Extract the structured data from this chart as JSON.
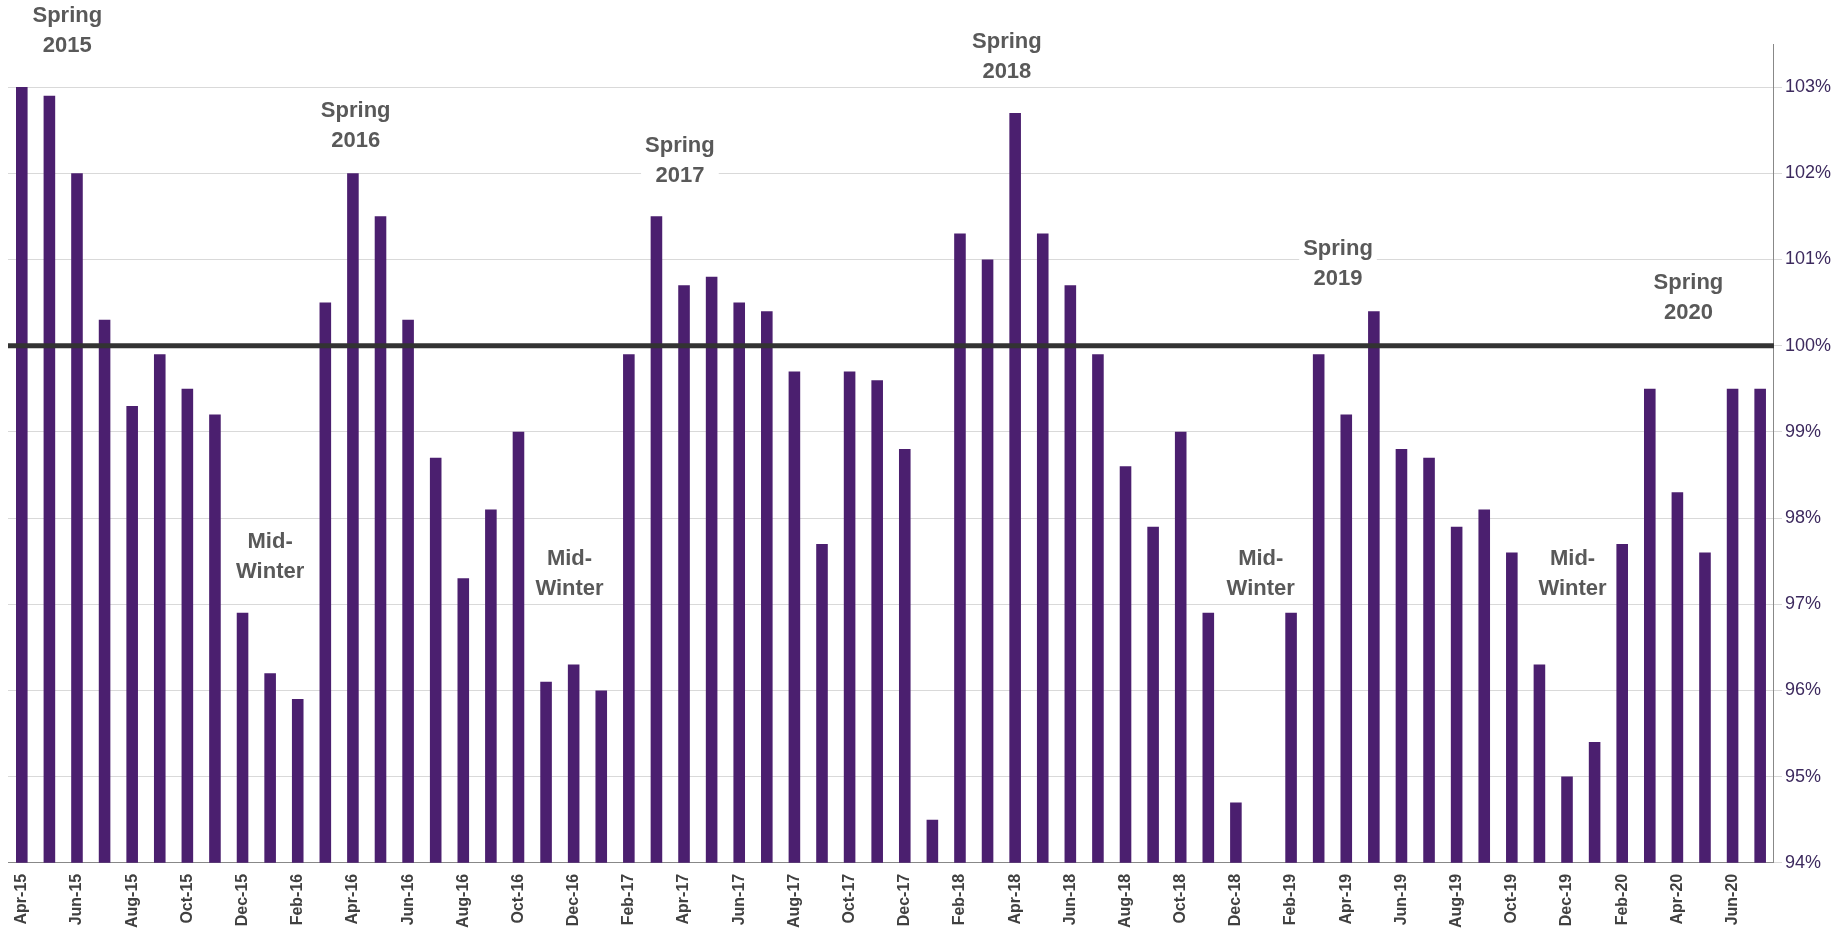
{
  "chart_data": {
    "type": "bar",
    "categories": [
      "Apr-15",
      null,
      "Jun-15",
      null,
      "Aug-15",
      null,
      "Oct-15",
      null,
      "Dec-15",
      null,
      "Feb-16",
      null,
      "Apr-16",
      null,
      "Jun-16",
      null,
      "Aug-16",
      null,
      "Oct-16",
      null,
      "Dec-16",
      null,
      "Feb-17",
      null,
      "Apr-17",
      null,
      "Jun-17",
      null,
      "Aug-17",
      null,
      "Oct-17",
      null,
      "Dec-17",
      null,
      "Feb-18",
      null,
      "Apr-18",
      null,
      "Jun-18",
      null,
      "Aug-18",
      null,
      "Oct-18",
      null,
      "Dec-18",
      null,
      "Feb-19",
      null,
      "Apr-19",
      null,
      "Jun-19",
      null,
      "Aug-19",
      null,
      "Oct-19",
      null,
      "Dec-19",
      null,
      "Feb-20",
      null,
      "Apr-20",
      null,
      "Jun-20",
      null
    ],
    "values": [
      103,
      102.9,
      102,
      100.3,
      99.3,
      99.9,
      99.5,
      99.2,
      96.9,
      96.2,
      95.9,
      100.5,
      102,
      101.5,
      100.3,
      98.7,
      97.3,
      98.1,
      99,
      96.1,
      96.3,
      96,
      99.9,
      101.5,
      100.7,
      100.8,
      100.5,
      100.4,
      99.7,
      97.7,
      99.7,
      99.6,
      98.8,
      94.5,
      101.3,
      101,
      102.7,
      101.3,
      100.7,
      99.9,
      98.6,
      97.9,
      99,
      96.9,
      94.7,
      null,
      96.9,
      99.9,
      99.2,
      100.4,
      98.8,
      98.7,
      97.9,
      98.1,
      97.6,
      96.3,
      95,
      95.4,
      97.7,
      99.5,
      98.3,
      97.6,
      99.5,
      99.5
    ],
    "color": "#4b1f6f",
    "ylim": [
      94,
      103.5
    ],
    "yticks": [
      {
        "value": 94,
        "label": "94%"
      },
      {
        "value": 95,
        "label": "95%"
      },
      {
        "value": 96,
        "label": "96%"
      },
      {
        "value": 97,
        "label": "97%"
      },
      {
        "value": 98,
        "label": "98%"
      },
      {
        "value": 99,
        "label": "99%"
      },
      {
        "value": 100,
        "label": "100%"
      },
      {
        "value": 101,
        "label": "101%"
      },
      {
        "value": 102,
        "label": "102%"
      },
      {
        "value": 103,
        "label": "103%"
      }
    ],
    "grid": "y",
    "legend": false,
    "ref_lines": [
      {
        "axis": "y",
        "value": 100,
        "color": "#333333"
      }
    ],
    "annotations": [
      "Spring\n2015",
      "Spring\n2016",
      "Spring\n2017",
      "Spring\n2018",
      "Spring\n2019",
      "Spring\n2020",
      "Mid-\nWinter",
      "Mid-\nWinter",
      "Mid-\nWinter",
      "Mid-\nWinter"
    ]
  }
}
